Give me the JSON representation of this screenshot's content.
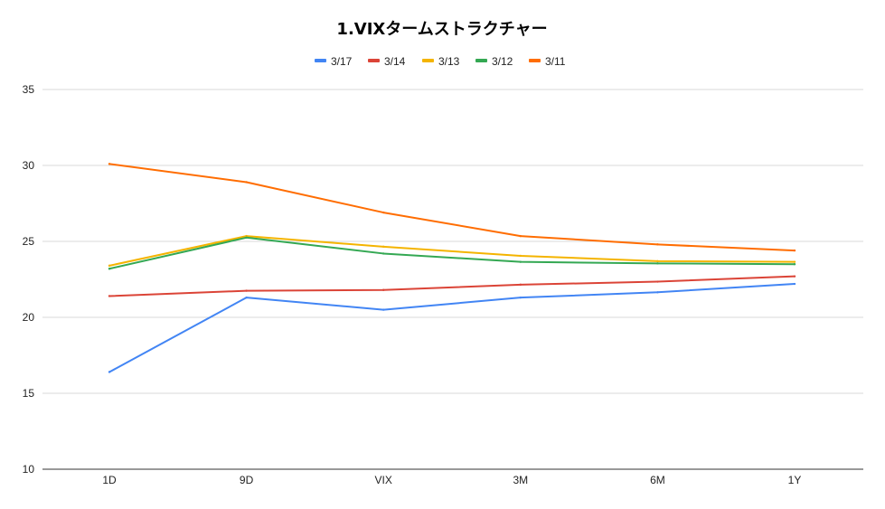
{
  "chart_data": {
    "type": "line",
    "title": "1.VIXタームストラクチャー",
    "xlabel": "",
    "ylabel": "",
    "categories": [
      "1D",
      "9D",
      "VIX",
      "3M",
      "6M",
      "1Y"
    ],
    "ylim": [
      10,
      35
    ],
    "yticks": [
      10,
      15,
      20,
      25,
      30,
      35
    ],
    "grid": true,
    "legend_position": "top",
    "series": [
      {
        "name": "3/17",
        "color": "#4285f4",
        "values": [
          16.4,
          21.3,
          20.5,
          21.3,
          21.65,
          22.2
        ]
      },
      {
        "name": "3/14",
        "color": "#db4437",
        "values": [
          21.4,
          21.75,
          21.8,
          22.15,
          22.35,
          22.7
        ]
      },
      {
        "name": "3/13",
        "color": "#f4b400",
        "values": [
          23.4,
          25.35,
          24.65,
          24.05,
          23.7,
          23.65
        ]
      },
      {
        "name": "3/12",
        "color": "#34a853",
        "values": [
          23.2,
          25.25,
          24.2,
          23.65,
          23.55,
          23.5
        ]
      },
      {
        "name": "3/11",
        "color": "#ff6d01",
        "values": [
          30.1,
          28.9,
          26.9,
          25.35,
          24.8,
          24.4
        ]
      }
    ]
  }
}
